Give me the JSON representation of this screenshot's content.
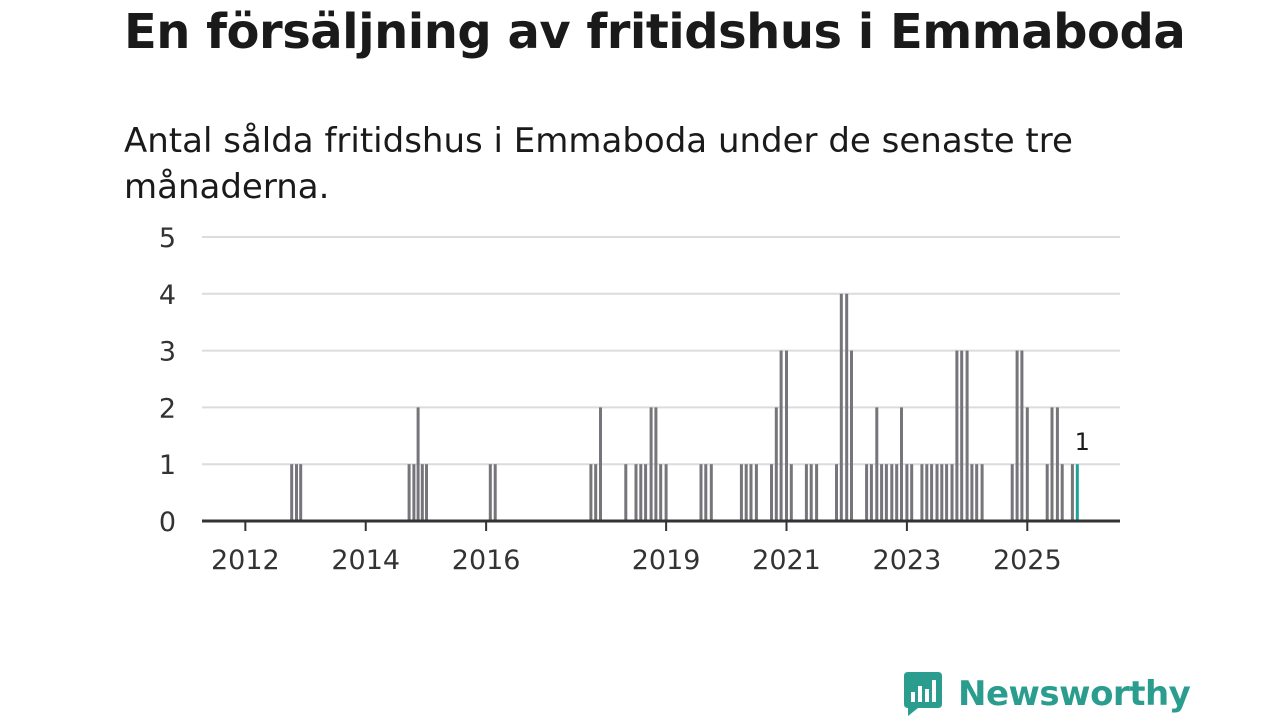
{
  "header": {
    "title": "En försäljning av fritidshus i Emmaboda",
    "subtitle": "Antal sålda fritidshus i Emmaboda under de senaste tre månaderna."
  },
  "brand": {
    "name": "Newsworthy",
    "color": "#2a9d8f"
  },
  "colors": {
    "bar": "#75757a",
    "highlight": "#1aa396",
    "grid": "#dcdcdc"
  },
  "chart_data": {
    "type": "bar",
    "title": "Antal sålda fritidshus i Emmaboda under de senaste tre månaderna.",
    "xlabel": "",
    "ylabel": "",
    "ylim": [
      0,
      5
    ],
    "y_ticks": [
      0,
      1,
      2,
      3,
      4,
      5
    ],
    "x_ticks": [
      {
        "label": "2012",
        "x": 2011.97
      },
      {
        "label": "2014",
        "x": 2013.97
      },
      {
        "label": "2016",
        "x": 2015.97
      },
      {
        "label": "2019",
        "x": 2018.96
      },
      {
        "label": "2021",
        "x": 2020.96
      },
      {
        "label": "2023",
        "x": 2022.96
      },
      {
        "label": "2025",
        "x": 2024.96
      }
    ],
    "x_range": [
      2011.25,
      2026.5
    ],
    "bar_width_years": 0.05,
    "annotation": {
      "text": "1",
      "x": 2025.74,
      "value": 1
    },
    "points": [
      {
        "x": 2012.74,
        "value": 1
      },
      {
        "x": 2012.82,
        "value": 1
      },
      {
        "x": 2012.89,
        "value": 1
      },
      {
        "x": 2014.69,
        "value": 1
      },
      {
        "x": 2014.77,
        "value": 1
      },
      {
        "x": 2014.84,
        "value": 2
      },
      {
        "x": 2014.91,
        "value": 1
      },
      {
        "x": 2014.98,
        "value": 1
      },
      {
        "x": 2016.04,
        "value": 1
      },
      {
        "x": 2016.12,
        "value": 1
      },
      {
        "x": 2017.71,
        "value": 1
      },
      {
        "x": 2017.79,
        "value": 1
      },
      {
        "x": 2017.87,
        "value": 2
      },
      {
        "x": 2018.29,
        "value": 1
      },
      {
        "x": 2018.46,
        "value": 1
      },
      {
        "x": 2018.54,
        "value": 1
      },
      {
        "x": 2018.62,
        "value": 1
      },
      {
        "x": 2018.71,
        "value": 2
      },
      {
        "x": 2018.79,
        "value": 2
      },
      {
        "x": 2018.87,
        "value": 1
      },
      {
        "x": 2018.96,
        "value": 1
      },
      {
        "x": 2019.54,
        "value": 1
      },
      {
        "x": 2019.62,
        "value": 1
      },
      {
        "x": 2019.71,
        "value": 1
      },
      {
        "x": 2020.21,
        "value": 1
      },
      {
        "x": 2020.29,
        "value": 1
      },
      {
        "x": 2020.37,
        "value": 1
      },
      {
        "x": 2020.46,
        "value": 1
      },
      {
        "x": 2020.71,
        "value": 1
      },
      {
        "x": 2020.79,
        "value": 2
      },
      {
        "x": 2020.87,
        "value": 3
      },
      {
        "x": 2020.96,
        "value": 3
      },
      {
        "x": 2021.04,
        "value": 1
      },
      {
        "x": 2021.29,
        "value": 1
      },
      {
        "x": 2021.37,
        "value": 1
      },
      {
        "x": 2021.46,
        "value": 1
      },
      {
        "x": 2021.79,
        "value": 1
      },
      {
        "x": 2021.87,
        "value": 4
      },
      {
        "x": 2021.96,
        "value": 4
      },
      {
        "x": 2022.04,
        "value": 3
      },
      {
        "x": 2022.29,
        "value": 1
      },
      {
        "x": 2022.37,
        "value": 1
      },
      {
        "x": 2022.46,
        "value": 2
      },
      {
        "x": 2022.54,
        "value": 1
      },
      {
        "x": 2022.62,
        "value": 1
      },
      {
        "x": 2022.71,
        "value": 1
      },
      {
        "x": 2022.79,
        "value": 1
      },
      {
        "x": 2022.87,
        "value": 2
      },
      {
        "x": 2022.96,
        "value": 1
      },
      {
        "x": 2023.04,
        "value": 1
      },
      {
        "x": 2023.21,
        "value": 1
      },
      {
        "x": 2023.29,
        "value": 1
      },
      {
        "x": 2023.37,
        "value": 1
      },
      {
        "x": 2023.46,
        "value": 1
      },
      {
        "x": 2023.54,
        "value": 1
      },
      {
        "x": 2023.62,
        "value": 1
      },
      {
        "x": 2023.71,
        "value": 1
      },
      {
        "x": 2023.79,
        "value": 3
      },
      {
        "x": 2023.87,
        "value": 3
      },
      {
        "x": 2023.96,
        "value": 3
      },
      {
        "x": 2024.04,
        "value": 1
      },
      {
        "x": 2024.12,
        "value": 1
      },
      {
        "x": 2024.21,
        "value": 1
      },
      {
        "x": 2024.71,
        "value": 1
      },
      {
        "x": 2024.79,
        "value": 3
      },
      {
        "x": 2024.87,
        "value": 3
      },
      {
        "x": 2024.96,
        "value": 2
      },
      {
        "x": 2025.29,
        "value": 1
      },
      {
        "x": 2025.37,
        "value": 2
      },
      {
        "x": 2025.46,
        "value": 2
      },
      {
        "x": 2025.54,
        "value": 1
      },
      {
        "x": 2025.71,
        "value": 1
      },
      {
        "x": 2025.79,
        "value": 1,
        "highlight": true
      }
    ]
  }
}
